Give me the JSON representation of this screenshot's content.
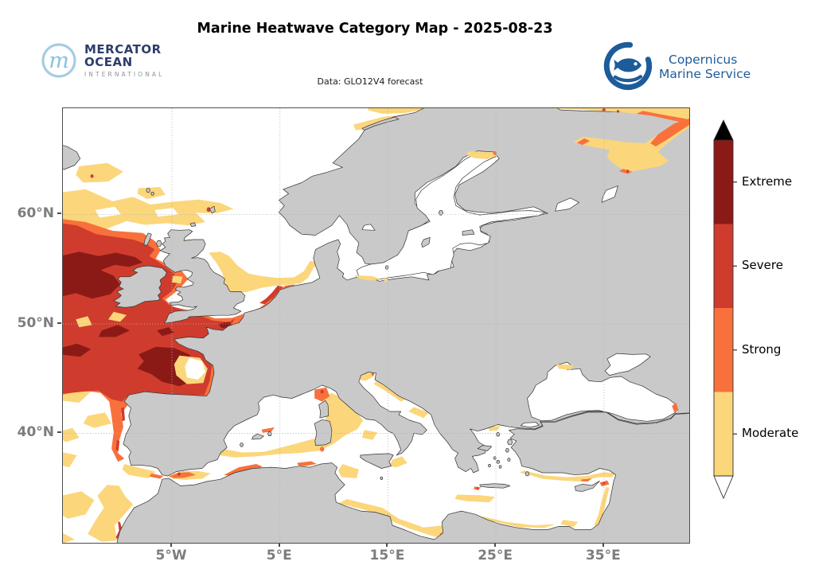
{
  "title": "Marine Heatwave Category Map - 2025-08-23",
  "subtitle": "Data: GLO12V4 forecast",
  "logos": {
    "mercator": {
      "name": "MERCATOR",
      "name2": "OCEAN",
      "tagline": "INTERNATIONAL",
      "icon": "mercator-m-circle-icon",
      "ring_color": "#a5cde3",
      "text_color": "#2c3e6b"
    },
    "copernicus": {
      "line1": "Copernicus",
      "line2": "Marine Service",
      "icon": "copernicus-fish-icon",
      "color": "#1d5c99"
    }
  },
  "map": {
    "extent": {
      "lon_min": -15.1,
      "lon_max": 42.9,
      "lat_min": 30.0,
      "lat_max": 69.7
    },
    "x_ticks": [
      {
        "label": "5°W",
        "lon": -5
      },
      {
        "label": "5°E",
        "lon": 5
      },
      {
        "label": "15°E",
        "lon": 15
      },
      {
        "label": "25°E",
        "lon": 25
      },
      {
        "label": "35°E",
        "lon": 35
      }
    ],
    "y_ticks": [
      {
        "label": "60°N",
        "lat": 60
      },
      {
        "label": "50°N",
        "lat": 50
      },
      {
        "label": "40°N",
        "lat": 40
      }
    ],
    "land_color": "#c9c9c9",
    "ocean_color": "#ffffff",
    "coast_color": "#333333",
    "grid_color": "#b3b3b3"
  },
  "legend": {
    "categories": [
      {
        "label": "Extreme",
        "color": "#8b1a17"
      },
      {
        "label": "Severe",
        "color": "#cf3c2d"
      },
      {
        "label": "Strong",
        "color": "#f8713c"
      },
      {
        "label": "Moderate",
        "color": "#fbd67b"
      }
    ],
    "top_arrow_color": "#000000",
    "bottom_arrow_color": "#ffffff"
  }
}
